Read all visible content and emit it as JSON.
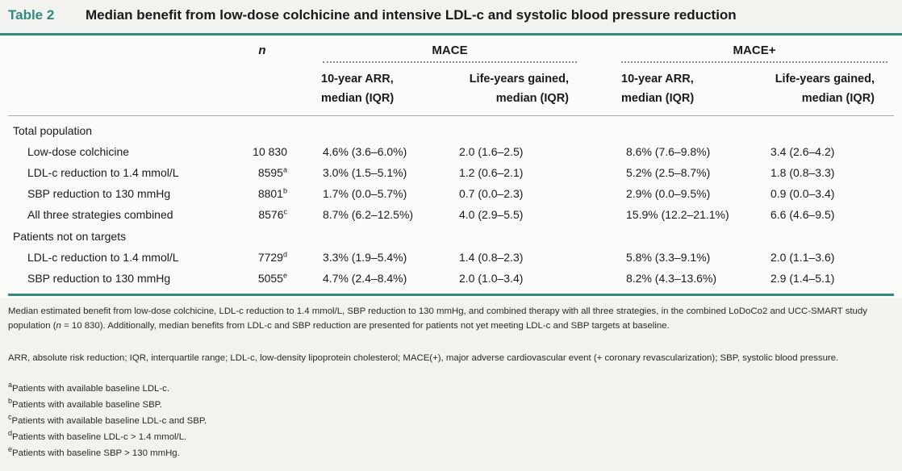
{
  "title": {
    "label": "Table 2",
    "text": "Median benefit from low-dose colchicine and intensive LDL-c and systolic blood pressure reduction"
  },
  "header": {
    "n": "n",
    "mace": "MACE",
    "mace_plus": "MACE+",
    "arr_line1": "10-year ARR,",
    "arr_line2": "median (IQR)",
    "ly_line1": "Life-years gained,",
    "ly_line2": "median (IQR)"
  },
  "groups": {
    "total": "Total population",
    "not_on_targets": "Patients not on targets"
  },
  "rows": [
    {
      "label": "Low-dose colchicine",
      "n": "10 830",
      "sup": "",
      "mace_arr": "4.6% (3.6–6.0%)",
      "mace_ly": "2.0 (1.6–2.5)",
      "macep_arr": "8.6% (7.6–9.8%)",
      "macep_ly": "3.4 (2.6–4.2)"
    },
    {
      "label": "LDL-c reduction to 1.4 mmol/L",
      "n": "8595",
      "sup": "a",
      "mace_arr": "3.0% (1.5–5.1%)",
      "mace_ly": "1.2 (0.6–2.1)",
      "macep_arr": "5.2% (2.5–8.7%)",
      "macep_ly": "1.8 (0.8–3.3)"
    },
    {
      "label": "SBP reduction to 130 mmHg",
      "n": "8801",
      "sup": "b",
      "mace_arr": "1.7% (0.0–5.7%)",
      "mace_ly": "0.7 (0.0–2.3)",
      "macep_arr": "2.9% (0.0–9.5%)",
      "macep_ly": "0.9 (0.0–3.4)"
    },
    {
      "label": "All three strategies combined",
      "n": "8576",
      "sup": "c",
      "mace_arr": "8.7% (6.2–12.5%)",
      "mace_ly": "4.0 (2.9–5.5)",
      "macep_arr": "15.9% (12.2–21.1%)",
      "macep_ly": "6.6 (4.6–9.5)"
    },
    {
      "label": "LDL-c reduction to 1.4 mmol/L",
      "n": "7729",
      "sup": "d",
      "mace_arr": "3.3% (1.9–5.4%)",
      "mace_ly": "1.4 (0.8–2.3)",
      "macep_arr": "5.8% (3.3–9.1%)",
      "macep_ly": "2.0 (1.1–3.6)"
    },
    {
      "label": "SBP reduction to 130 mmHg",
      "n": "5055",
      "sup": "e",
      "mace_arr": "4.7% (2.4–8.4%)",
      "mace_ly": "2.0 (1.0–3.4)",
      "macep_arr": "8.2% (4.3–13.6%)",
      "macep_ly": "2.9 (1.4–5.1)"
    }
  ],
  "footnotes": {
    "main_1": "Median estimated benefit from low-dose colchicine, LDL-c reduction to 1.4 mmol/L, SBP reduction to 130 mmHg, and combined therapy with all three strategies, in the combined LoDoCo2 and UCC-SMART study population (",
    "main_n": "n",
    "main_2": " = 10 830). Additionally, median benefits from LDL-c and SBP reduction are presented for patients not yet meeting LDL-c and SBP targets at baseline.",
    "abbrev": "ARR, absolute risk reduction; IQR, interquartile range; LDL-c, low-density lipoprotein cholesterol; MACE(+), major adverse cardiovascular event (+ coronary revascularization); SBP, systolic blood pressure.",
    "notes": [
      {
        "mark": "a",
        "text": "Patients with available baseline LDL-c."
      },
      {
        "mark": "b",
        "text": "Patients with available baseline SBP."
      },
      {
        "mark": "c",
        "text": "Patients with available baseline LDL-c and SBP."
      },
      {
        "mark": "d",
        "text": "Patients with baseline LDL-c > 1.4 mmol/L."
      },
      {
        "mark": "e",
        "text": "Patients with baseline SBP > 130 mmHg."
      }
    ]
  },
  "colors": {
    "accent": "#2f8a7f",
    "header_bg": "#f2f2ee"
  }
}
